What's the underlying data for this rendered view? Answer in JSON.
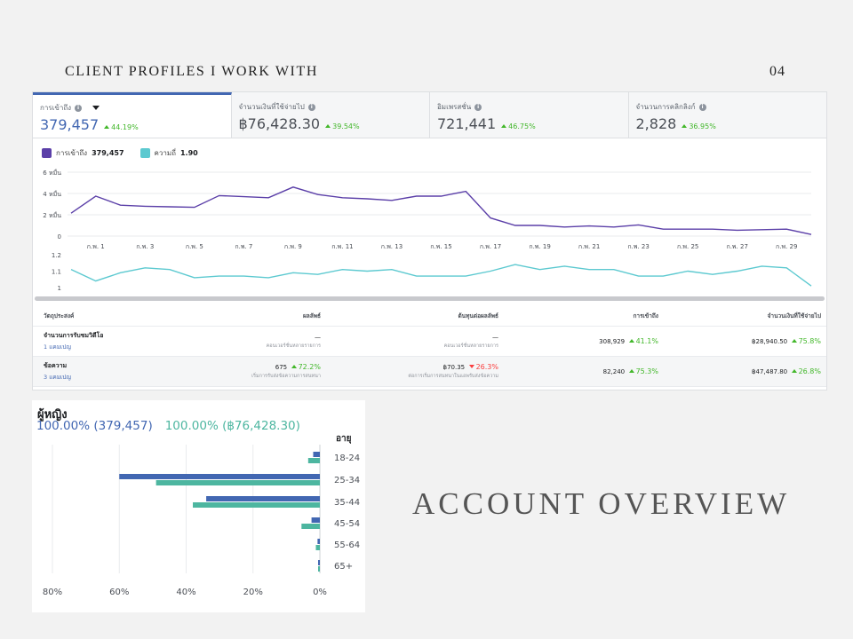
{
  "slide": {
    "header": "CLIENT PROFILES I WORK WITH",
    "page_number": "04",
    "section_title": "ACCOUNT OVERVIEW"
  },
  "metrics": [
    {
      "label": "การเข้าถึง",
      "value": "379,457",
      "delta": "44.19%",
      "has_dropdown": true
    },
    {
      "label": "จำนวนเงินที่ใช้จ่ายไป",
      "value": "฿76,428.30",
      "delta": "39.54%"
    },
    {
      "label": "อิมเพรสชั่น",
      "value": "721,441",
      "delta": "46.75%"
    },
    {
      "label": "จำนวนการคลิกลิงก์",
      "value": "2,828",
      "delta": "36.95%"
    }
  ],
  "legend": [
    {
      "name": "การเข้าถึง",
      "value": "379,457",
      "color": "#5b3fa8"
    },
    {
      "name": "ความถี่",
      "value": "1.90",
      "color": "#5cc9d0"
    }
  ],
  "chart_data": [
    {
      "type": "line",
      "series": [
        {
          "name": "การเข้าถึง",
          "values": [
            21500,
            37500,
            29000,
            28000,
            27500,
            27000,
            38000,
            37000,
            36000,
            46000,
            39000,
            36000,
            35000,
            33500,
            37500,
            37500,
            42000,
            17000,
            10000,
            10000,
            8500,
            9500,
            8500,
            10500,
            6500,
            6500,
            6500,
            5500,
            6000,
            6500,
            1500
          ]
        }
      ],
      "ylim": [
        0,
        60000
      ],
      "y_ticks": [
        "0",
        "2 หมื่น",
        "4 หมื่น",
        "6 หมื่น"
      ],
      "x_ticks": [
        "ก.พ. 1",
        "ก.พ. 3",
        "ก.พ. 5",
        "ก.พ. 7",
        "ก.พ. 9",
        "ก.พ. 11",
        "ก.พ. 13",
        "ก.พ. 15",
        "ก.พ. 17",
        "ก.พ. 19",
        "ก.พ. 21",
        "ก.พ. 23",
        "ก.พ. 25",
        "ก.พ. 27",
        "ก.พ. 29"
      ],
      "grid": true
    },
    {
      "type": "line",
      "series": [
        {
          "name": "ความถี่",
          "values": [
            1.11,
            1.04,
            1.09,
            1.12,
            1.11,
            1.06,
            1.07,
            1.07,
            1.06,
            1.09,
            1.08,
            1.11,
            1.1,
            1.11,
            1.07,
            1.07,
            1.07,
            1.1,
            1.14,
            1.11,
            1.13,
            1.11,
            1.11,
            1.07,
            1.07,
            1.1,
            1.08,
            1.1,
            1.13,
            1.12,
            1.01
          ]
        }
      ],
      "ylim": [
        1,
        1.2
      ],
      "y_ticks": [
        "1",
        "1.1",
        "1.2"
      ]
    },
    {
      "type": "bar",
      "orientation": "horizontal",
      "categories": [
        "18-24",
        "25-34",
        "35-44",
        "45-54",
        "55-64",
        "65+"
      ],
      "series": [
        {
          "name": "100.00% (379,457)",
          "color": "#4267b2",
          "values": [
            2.0,
            60.0,
            34.0,
            2.5,
            0.7,
            0.3
          ]
        },
        {
          "name": "100.00% (฿76,428.30)",
          "color": "#4db6a0",
          "values": [
            3.5,
            49.0,
            38.0,
            5.5,
            1.2,
            0.5
          ]
        }
      ],
      "xlim": [
        0,
        80
      ],
      "x_ticks": [
        "80%",
        "60%",
        "40%",
        "20%",
        "0%"
      ]
    }
  ],
  "table": {
    "headers": [
      "วัตถุประสงค์",
      "ผลลัพธ์",
      "ต้นทุนต่อผลลัพธ์",
      "การเข้าถึง",
      "จำนวนเงินที่ใช้จ่ายไป"
    ],
    "rows": [
      {
        "objective": "จำนวนการรับชมวิดีโอ",
        "campaigns": "1 แคมเปญ",
        "result": "—",
        "result_sub": "คอนเวอร์ชั่นหลายรายการ",
        "cpr": "—",
        "cpr_sub": "คอนเวอร์ชั่นหลายรายการ",
        "reach": "308,929",
        "reach_delta": "41.1%",
        "spend": "฿28,940.50",
        "spend_delta": "75.8%"
      },
      {
        "objective": "ข้อความ",
        "campaigns": "3 แคมเปญ",
        "result": "675",
        "result_delta": "72.2%",
        "result_sub": "เริ่มการรับส่งข้อความการสนทนา",
        "cpr": "฿70.35",
        "cpr_delta": "26.3%",
        "cpr_sub": "ต่อการเริ่มการสนทนาในแอพรับส่งข้อความ",
        "reach": "82,240",
        "reach_delta": "75.3%",
        "spend": "฿47,487.80",
        "spend_delta": "26.8%"
      }
    ]
  },
  "demographics": {
    "title": "ผู้หญิง",
    "total_reach": "100.00% (379,457)",
    "total_spend": "100.00% (฿76,428.30)",
    "age_header": "อายุ"
  }
}
